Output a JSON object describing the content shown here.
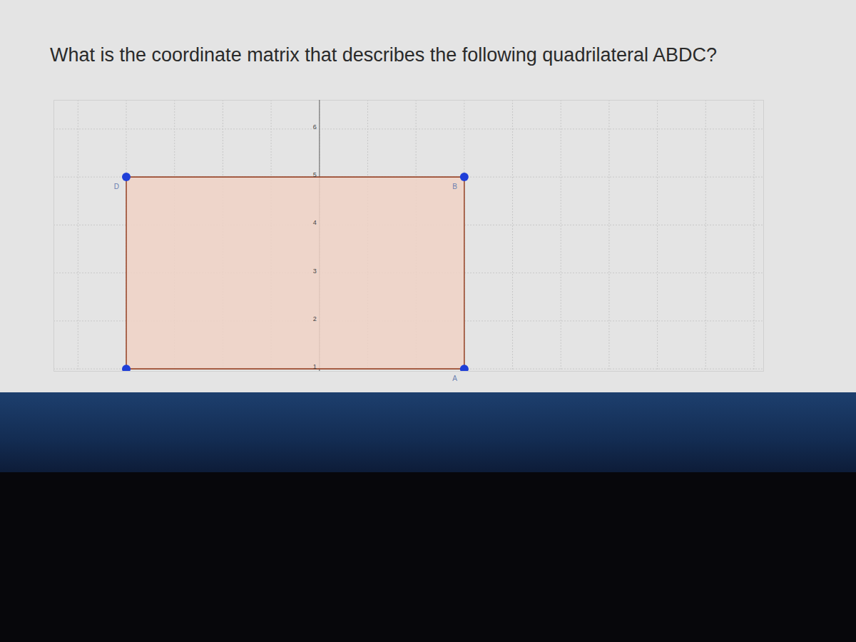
{
  "chart_data": {
    "type": "polygon",
    "title": "What is the coordinate matrix that describes the following quadrilateral ABDC?",
    "points": [
      {
        "label": "A",
        "x": 3,
        "y": 1
      },
      {
        "label": "B",
        "x": 3,
        "y": 5
      },
      {
        "label": "D",
        "x": -4,
        "y": 5
      },
      {
        "label": null,
        "x": -4,
        "y": 1
      }
    ],
    "color": "#f0d2c6",
    "xlim": [
      -5.5,
      9.2
    ],
    "ylim": [
      0.95,
      6.6
    ],
    "xticks": [
      -5,
      -4,
      -3,
      -2,
      -1,
      0,
      1,
      2,
      3,
      4,
      5,
      6,
      7,
      8,
      9
    ],
    "yticks": [
      1,
      2,
      3,
      4,
      5,
      6
    ],
    "grid": true,
    "tick_labels": "y"
  }
}
